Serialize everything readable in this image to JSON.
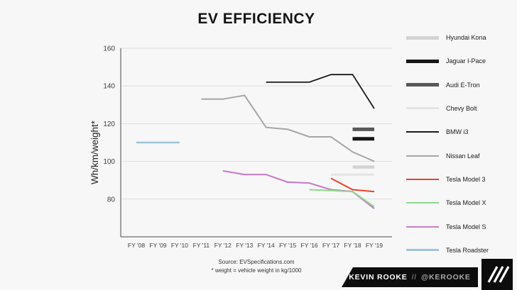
{
  "chart_data": {
    "type": "line",
    "title": "EV EFFICIENCY",
    "ylabel": "Wh/km/weight*",
    "xlabel": "",
    "ylim": [
      60,
      160
    ],
    "yticks": [
      80,
      100,
      120,
      140,
      160
    ],
    "grid": true,
    "legend_position": "right",
    "categories": [
      "FY '08",
      "FY '09",
      "FY '10",
      "FY '11",
      "FY '12",
      "FY '13",
      "FY '14",
      "FY '15",
      "FY '16",
      "FY '17",
      "FY '18",
      "FY '19"
    ],
    "series": [
      {
        "name": "Hyundai Kona",
        "color": "#d3d3d3",
        "line_width": 4.5,
        "start": 10,
        "values": [
          97,
          97
        ]
      },
      {
        "name": "Jaguar I-Pace",
        "color": "#161616",
        "line_width": 5,
        "start": 10,
        "values": [
          112,
          112
        ]
      },
      {
        "name": "Audi E-Tron",
        "color": "#595959",
        "line_width": 5,
        "start": 10,
        "values": [
          117,
          117
        ]
      },
      {
        "name": "Chevy Bolt",
        "color": "#e4e4e4",
        "line_width": 3,
        "start": 9,
        "values": [
          93,
          93,
          93
        ]
      },
      {
        "name": "BMW i3",
        "color": "#1a1a1a",
        "line_width": 1.8,
        "start": 6,
        "values": [
          142,
          142,
          142,
          146,
          146,
          128
        ]
      },
      {
        "name": "Nissan Leaf",
        "color": "#a6a6a6",
        "line_width": 2,
        "start": 3,
        "values": [
          133,
          133,
          135,
          118,
          117,
          113,
          113,
          105,
          100
        ]
      },
      {
        "name": "Tesla Model 3",
        "color": "#e8422e",
        "line_width": 2,
        "start": 9,
        "values": [
          91,
          85,
          84
        ]
      },
      {
        "name": "Tesla Model X",
        "color": "#8fd98c",
        "line_width": 2,
        "start": 8,
        "values": [
          85,
          84.5,
          84,
          76
        ]
      },
      {
        "name": "Tesla Model S",
        "color": "#c77fc9",
        "line_width": 2.2,
        "start": 4,
        "values": [
          95,
          93,
          93,
          89,
          88.5,
          85,
          84,
          75
        ]
      },
      {
        "name": "Tesla Roadster",
        "color": "#9dc6d8",
        "line_width": 2.5,
        "start": 0,
        "values": [
          110,
          110,
          110
        ]
      }
    ]
  },
  "footer": {
    "source": "Source: EVSpecifications.com",
    "note": "* weight = vehicle weight in kg/1000"
  },
  "branding": {
    "name": "KEVIN ROOKE",
    "separator": "//",
    "handle": "@KEROOKE"
  }
}
